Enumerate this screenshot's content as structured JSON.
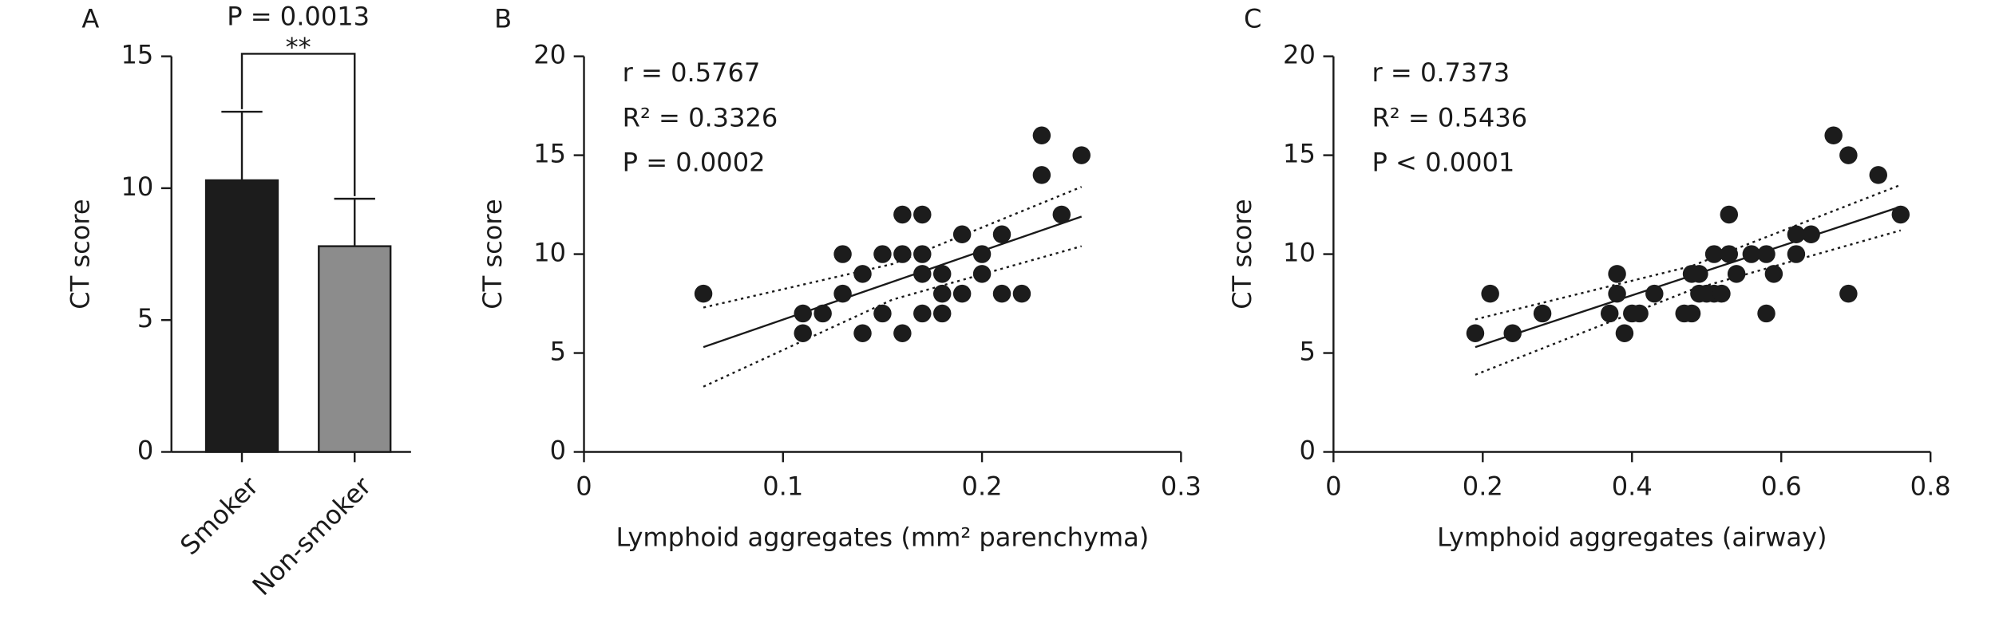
{
  "chart_data": [
    {
      "type": "bar",
      "panel": "A",
      "ylabel": "CT score",
      "categories": [
        "Smoker",
        "Non-smoker"
      ],
      "values": [
        10.3,
        7.8
      ],
      "errors": [
        2.6,
        1.8
      ],
      "colors": [
        "#1c1c1c",
        "#8c8c8c"
      ],
      "ylim": [
        0,
        15
      ],
      "yticks": [
        0,
        5,
        10,
        15
      ],
      "annotations": [
        "P = 0.0013",
        "**"
      ],
      "grid": false
    },
    {
      "type": "scatter",
      "panel": "B",
      "ylabel": "CT score",
      "xlabel": "Lymphoid aggregates (mm² parenchyma)",
      "stats": [
        "r = 0.5767",
        "R² = 0.3326",
        "P = 0.0002"
      ],
      "x": [
        0.06,
        0.11,
        0.11,
        0.12,
        0.13,
        0.13,
        0.14,
        0.14,
        0.15,
        0.15,
        0.16,
        0.16,
        0.16,
        0.17,
        0.17,
        0.17,
        0.17,
        0.18,
        0.18,
        0.18,
        0.19,
        0.19,
        0.2,
        0.2,
        0.21,
        0.21,
        0.22,
        0.23,
        0.23,
        0.24,
        0.25
      ],
      "values": [
        8,
        7,
        6,
        7,
        10,
        8,
        9,
        6,
        10,
        7,
        12,
        10,
        6,
        12,
        10,
        9,
        7,
        9,
        8,
        7,
        11,
        8,
        10,
        9,
        11,
        8,
        8,
        16,
        14,
        12,
        15
      ],
      "color": "#1c1c1c",
      "fit": {
        "x": [
          0.06,
          0.25
        ],
        "values": [
          5.3,
          11.9
        ]
      },
      "ci_upper": {
        "x": [
          0.06,
          0.155,
          0.25
        ],
        "values": [
          7.3,
          9.5,
          13.4
        ]
      },
      "ci_lower": {
        "x": [
          0.06,
          0.155,
          0.25
        ],
        "values": [
          3.3,
          7.7,
          10.4
        ]
      },
      "xlim": [
        0,
        0.3
      ],
      "xticks": [
        0,
        0.1,
        0.2,
        0.3
      ],
      "ylim": [
        0,
        20
      ],
      "yticks": [
        0,
        5,
        10,
        15,
        20
      ],
      "grid": false
    },
    {
      "type": "scatter",
      "panel": "C",
      "ylabel": "CT score",
      "xlabel": "Lymphoid aggregates (airway)",
      "stats": [
        "r = 0.7373",
        "R² = 0.5436",
        "P < 0.0001"
      ],
      "x": [
        0.19,
        0.21,
        0.24,
        0.28,
        0.37,
        0.38,
        0.38,
        0.39,
        0.4,
        0.41,
        0.43,
        0.47,
        0.48,
        0.48,
        0.49,
        0.49,
        0.5,
        0.51,
        0.51,
        0.52,
        0.53,
        0.53,
        0.54,
        0.56,
        0.58,
        0.58,
        0.59,
        0.62,
        0.62,
        0.64,
        0.67,
        0.69,
        0.69,
        0.73,
        0.76
      ],
      "values": [
        6,
        8,
        6,
        7,
        7,
        9,
        8,
        6,
        7,
        7,
        8,
        7,
        9,
        7,
        9,
        8,
        8,
        10,
        8,
        8,
        12,
        10,
        9,
        10,
        10,
        7,
        9,
        11,
        10,
        11,
        16,
        15,
        8,
        14,
        12
      ],
      "color": "#1c1c1c",
      "fit": {
        "x": [
          0.19,
          0.76
        ],
        "values": [
          5.3,
          12.4
        ]
      },
      "ci_upper": {
        "x": [
          0.19,
          0.48,
          0.76
        ],
        "values": [
          6.7,
          9.4,
          13.5
        ]
      },
      "ci_lower": {
        "x": [
          0.19,
          0.48,
          0.76
        ],
        "values": [
          3.9,
          8.2,
          11.2
        ]
      },
      "xlim": [
        0,
        0.8
      ],
      "xticks": [
        0,
        0.2,
        0.4,
        0.6,
        0.8
      ],
      "ylim": [
        0,
        20
      ],
      "yticks": [
        0,
        5,
        10,
        15,
        20
      ],
      "grid": false
    }
  ]
}
